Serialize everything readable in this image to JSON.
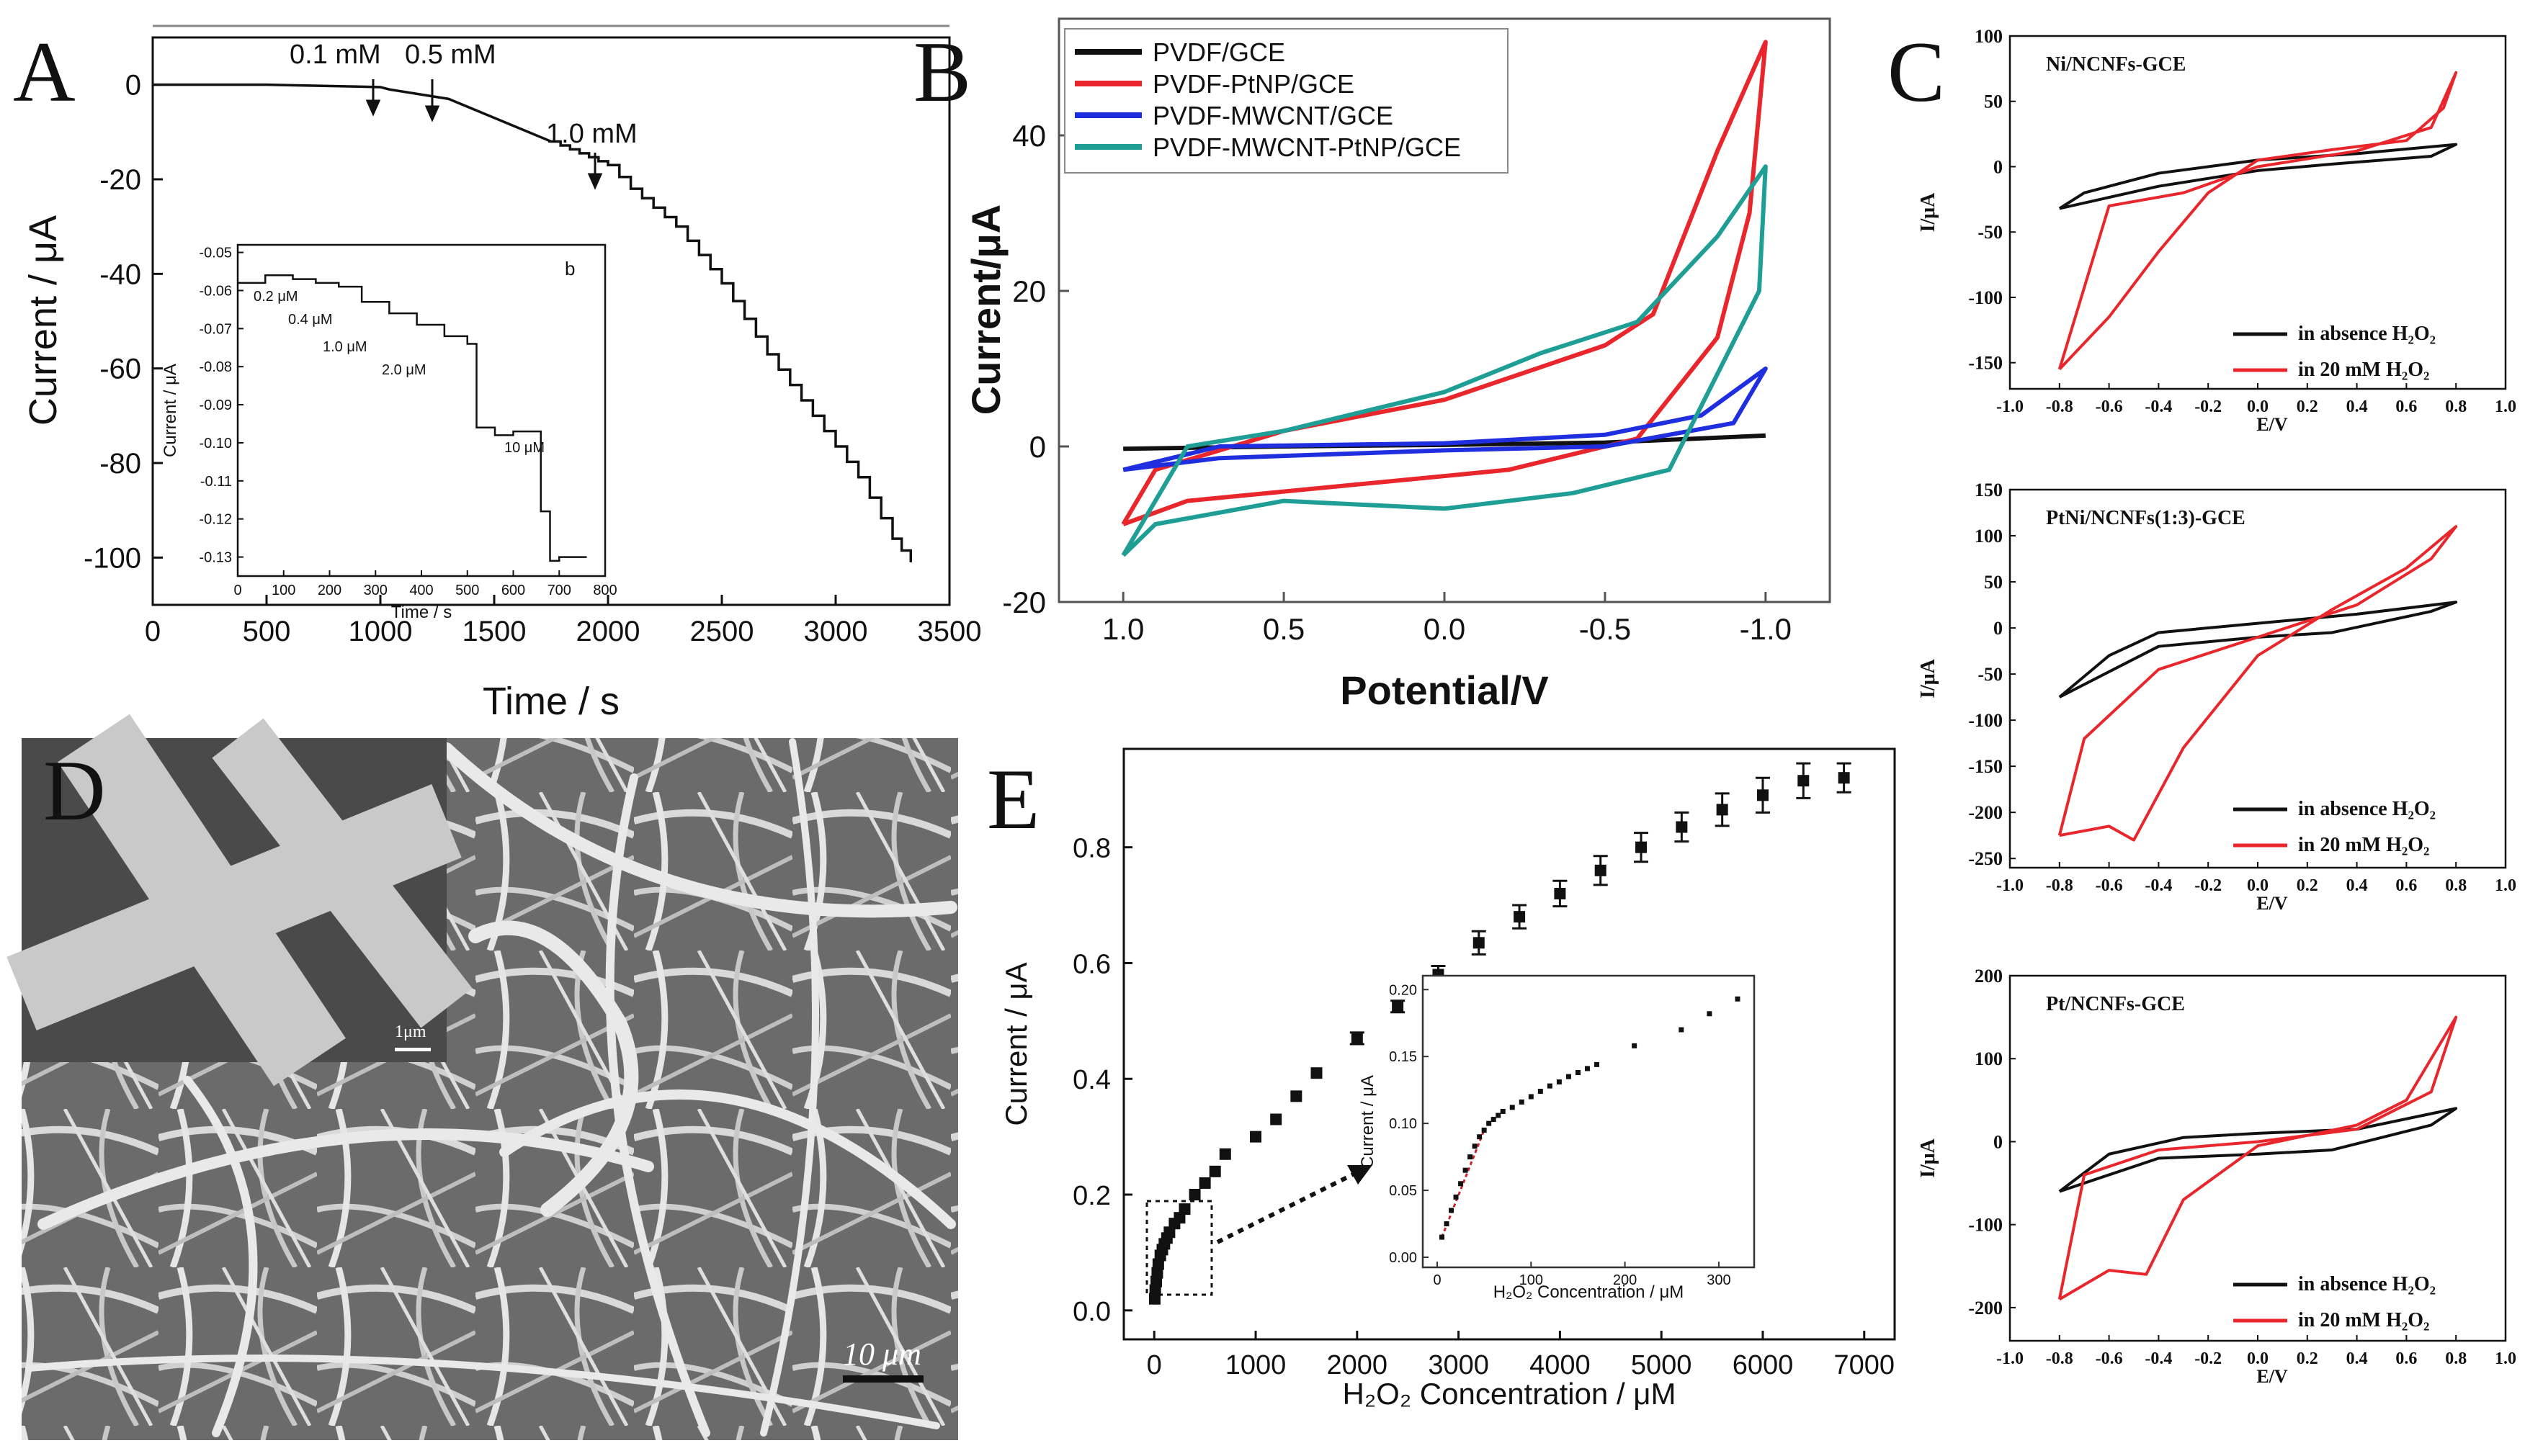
{
  "colors": {
    "black": "#111111",
    "red": "#e8262b",
    "blue": "#1f2fe0",
    "teal": "#1f9e96",
    "darkred": "#c8242a"
  },
  "panels": {
    "A": {
      "letter": "A",
      "main": {
        "xlabel": "Time / s",
        "ylabel": "Current / μA",
        "xticks": [
          "0",
          "500",
          "1000",
          "1500",
          "2000",
          "2500",
          "3000",
          "3500"
        ],
        "yticks": [
          "0",
          "-20",
          "-40",
          "-60",
          "-80",
          "-100"
        ],
        "annotations": [
          "0.1 mM",
          "0.5 mM",
          "1.0 mM"
        ]
      },
      "inset": {
        "panel_tag": "b",
        "xlabel": "Time / s",
        "ylabel": "Current / μA",
        "xticks": [
          "0",
          "100",
          "200",
          "300",
          "400",
          "500",
          "600",
          "700",
          "800"
        ],
        "yticks": [
          "-0.05",
          "-0.06",
          "-0.07",
          "-0.08",
          "-0.09",
          "-0.10",
          "-0.11",
          "-0.12",
          "-0.13"
        ],
        "annotations": [
          "0.2 μM",
          "0.4 μM",
          "1.0 μM",
          "2.0 μM",
          "10 μM"
        ]
      }
    },
    "B": {
      "letter": "B",
      "xlabel": "Potential/V",
      "ylabel": "Current/μA",
      "xticks": [
        "1.0",
        "0.5",
        "0.0",
        "-0.5",
        "-1.0"
      ],
      "yticks": [
        "40",
        "20",
        "0",
        "-20"
      ],
      "legend": [
        "PVDF/GCE",
        "PVDF-PtNP/GCE",
        "PVDF-MWCNT/GCE",
        "PVDF-MWCNT-PtNP/GCE"
      ]
    },
    "C": {
      "letter": "C",
      "xticks": [
        "-1.0",
        "-0.8",
        "-0.6",
        "-0.4",
        "-0.2",
        "0.0",
        "0.2",
        "0.4",
        "0.6",
        "0.8",
        "1.0"
      ],
      "xlabel": "E/V",
      "ylabel": "I/μA",
      "legend_black": "in absence H₂O₂",
      "legend_red": "in 20 mM H₂O₂",
      "subplots": [
        {
          "title": "Ni/NCNFs-GCE",
          "yticks": [
            "100",
            "50",
            "0",
            "-50",
            "-100",
            "-150"
          ]
        },
        {
          "title": "PtNi/NCNFs(1:3)-GCE",
          "yticks": [
            "150",
            "100",
            "50",
            "0",
            "-50",
            "-100",
            "-150",
            "-200",
            "-250"
          ]
        },
        {
          "title": "Pt/NCNFs-GCE",
          "yticks": [
            "200",
            "100",
            "0",
            "-100",
            "-200"
          ]
        }
      ]
    },
    "D": {
      "letter": "D",
      "inset_scale": "1μm",
      "scale": "10 μm"
    },
    "E": {
      "letter": "E",
      "xlabel": "H₂O₂ Concentration / μM",
      "ylabel": "Current / μA",
      "xticks": [
        "0",
        "1000",
        "2000",
        "3000",
        "4000",
        "5000",
        "6000",
        "7000"
      ],
      "yticks": [
        "0.0",
        "0.2",
        "0.4",
        "0.6",
        "0.8"
      ],
      "inset": {
        "xlabel": "H₂O₂ Concentration / μM",
        "ylabel": "Current / μA",
        "xticks": [
          "0",
          "100",
          "200",
          "300"
        ],
        "yticks": [
          "0.00",
          "0.05",
          "0.10",
          "0.15",
          "0.20"
        ]
      }
    }
  },
  "chart_data": [
    {
      "panel": "A",
      "type": "line",
      "title": "",
      "xlabel": "Time / s",
      "ylabel": "Current / μA",
      "xlim": [
        0,
        3500
      ],
      "ylim": [
        -110,
        10
      ],
      "x": [
        0,
        500,
        1000,
        1040,
        1300,
        1500,
        1750,
        2000,
        2100,
        2300,
        2500,
        2700,
        2900,
        3100,
        3250,
        3330
      ],
      "y": [
        0,
        0,
        -0.5,
        -1,
        -3,
        -7,
        -12,
        -17,
        -22,
        -30,
        -42,
        -57,
        -70,
        -83,
        -96,
        -101
      ]
    },
    {
      "panel": "A-inset",
      "type": "line",
      "xlabel": "Time / s",
      "ylabel": "Current / μA",
      "xlim": [
        0,
        800
      ],
      "ylim": [
        -0.135,
        -0.048
      ],
      "x": [
        0,
        60,
        120,
        170,
        220,
        270,
        330,
        390,
        450,
        500,
        520,
        560,
        600,
        660,
        680,
        700,
        760
      ],
      "y": [
        -0.058,
        -0.056,
        -0.057,
        -0.058,
        -0.059,
        -0.063,
        -0.066,
        -0.069,
        -0.072,
        -0.074,
        -0.096,
        -0.098,
        -0.097,
        -0.118,
        -0.131,
        -0.13,
        -0.13
      ]
    },
    {
      "panel": "B",
      "type": "line",
      "xlabel": "Potential/V",
      "ylabel": "Current/μA",
      "xlim": [
        1.2,
        -1.2
      ],
      "ylim": [
        -20,
        55
      ],
      "series": [
        {
          "name": "PVDF/GCE",
          "color": "#111111",
          "loop": [
            [
              1.0,
              -0.3
            ],
            [
              0.5,
              0.0
            ],
            [
              0.0,
              0.2
            ],
            [
              -0.5,
              0.5
            ],
            [
              -1.0,
              1.4
            ]
          ]
        },
        {
          "name": "PVDF-PtNP/GCE",
          "color": "#e8262b",
          "loop": [
            [
              1.0,
              -10
            ],
            [
              0.9,
              -3
            ],
            [
              0.5,
              2
            ],
            [
              0.0,
              6
            ],
            [
              -0.5,
              13
            ],
            [
              -0.65,
              17
            ],
            [
              -0.85,
              38
            ],
            [
              -1.0,
              52
            ],
            [
              -0.95,
              30
            ],
            [
              -0.85,
              14
            ],
            [
              -0.6,
              1
            ],
            [
              -0.2,
              -3
            ],
            [
              0.3,
              -5
            ],
            [
              0.8,
              -7
            ],
            [
              1.0,
              -10
            ]
          ]
        },
        {
          "name": "PVDF-MWCNT/GCE",
          "color": "#1f2fe0",
          "loop": [
            [
              1.0,
              -3
            ],
            [
              0.7,
              0
            ],
            [
              0.0,
              0.4
            ],
            [
              -0.5,
              1.5
            ],
            [
              -0.8,
              4
            ],
            [
              -1.0,
              10
            ],
            [
              -0.9,
              3
            ],
            [
              -0.5,
              0
            ],
            [
              0.0,
              -0.5
            ],
            [
              0.7,
              -1.5
            ],
            [
              1.0,
              -3
            ]
          ]
        },
        {
          "name": "PVDF-MWCNT-PtNP/GCE",
          "color": "#1f9e96",
          "loop": [
            [
              1.0,
              -14
            ],
            [
              0.8,
              0
            ],
            [
              0.5,
              2
            ],
            [
              0.0,
              7
            ],
            [
              -0.3,
              12
            ],
            [
              -0.6,
              16
            ],
            [
              -0.85,
              27
            ],
            [
              -1.0,
              36
            ],
            [
              -0.98,
              20
            ],
            [
              -0.7,
              -3
            ],
            [
              -0.4,
              -6
            ],
            [
              0.0,
              -8
            ],
            [
              0.5,
              -7
            ],
            [
              0.9,
              -10
            ],
            [
              1.0,
              -14
            ]
          ]
        }
      ]
    },
    {
      "panel": "C-1",
      "type": "line",
      "title": "Ni/NCNFs-GCE",
      "xlabel": "E/V",
      "ylabel": "I/μA",
      "xlim": [
        -1.0,
        1.0
      ],
      "ylim": [
        -170,
        100
      ],
      "series": [
        {
          "name": "in absence H₂O₂",
          "color": "#111111",
          "loop": [
            [
              -0.8,
              -32
            ],
            [
              -0.7,
              -20
            ],
            [
              -0.4,
              -5
            ],
            [
              0.0,
              5
            ],
            [
              0.4,
              10
            ],
            [
              0.8,
              17
            ],
            [
              0.7,
              8
            ],
            [
              0.3,
              2
            ],
            [
              0.0,
              -3
            ],
            [
              -0.4,
              -15
            ],
            [
              -0.8,
              -32
            ]
          ]
        },
        {
          "name": "in 20 mM H₂O₂",
          "color": "#e8262b",
          "loop": [
            [
              -0.8,
              -155
            ],
            [
              -0.6,
              -115
            ],
            [
              -0.4,
              -65
            ],
            [
              -0.2,
              -20
            ],
            [
              0.0,
              5
            ],
            [
              0.3,
              13
            ],
            [
              0.6,
              20
            ],
            [
              0.75,
              45
            ],
            [
              0.8,
              72
            ],
            [
              0.7,
              30
            ],
            [
              0.4,
              12
            ],
            [
              0.0,
              0
            ],
            [
              -0.3,
              -20
            ],
            [
              -0.6,
              -30
            ],
            [
              -0.8,
              -155
            ]
          ]
        }
      ]
    },
    {
      "panel": "C-2",
      "type": "line",
      "title": "PtNi/NCNFs(1:3)-GCE",
      "xlabel": "E/V",
      "ylabel": "I/μA",
      "xlim": [
        -1.0,
        1.0
      ],
      "ylim": [
        -260,
        150
      ],
      "series": [
        {
          "name": "in absence H₂O₂",
          "color": "#111111",
          "loop": [
            [
              -0.8,
              -75
            ],
            [
              -0.6,
              -30
            ],
            [
              -0.4,
              -5
            ],
            [
              0.0,
              5
            ],
            [
              0.4,
              15
            ],
            [
              0.8,
              28
            ],
            [
              0.7,
              18
            ],
            [
              0.3,
              -5
            ],
            [
              0.0,
              -10
            ],
            [
              -0.4,
              -20
            ],
            [
              -0.8,
              -75
            ]
          ]
        },
        {
          "name": "in 20 mM H₂O₂",
          "color": "#e8262b",
          "loop": [
            [
              -0.8,
              -225
            ],
            [
              -0.6,
              -215
            ],
            [
              -0.5,
              -230
            ],
            [
              -0.3,
              -130
            ],
            [
              0.0,
              -30
            ],
            [
              0.3,
              20
            ],
            [
              0.6,
              65
            ],
            [
              0.8,
              110
            ],
            [
              0.7,
              75
            ],
            [
              0.4,
              25
            ],
            [
              0.0,
              -10
            ],
            [
              -0.4,
              -45
            ],
            [
              -0.7,
              -120
            ],
            [
              -0.8,
              -225
            ]
          ]
        }
      ]
    },
    {
      "panel": "C-3",
      "type": "line",
      "title": "Pt/NCNFs-GCE",
      "xlabel": "E/V",
      "ylabel": "I/μA",
      "xlim": [
        -1.0,
        1.0
      ],
      "ylim": [
        -240,
        200
      ],
      "series": [
        {
          "name": "in absence H₂O₂",
          "color": "#111111",
          "loop": [
            [
              -0.8,
              -60
            ],
            [
              -0.6,
              -15
            ],
            [
              -0.3,
              5
            ],
            [
              0.0,
              10
            ],
            [
              0.4,
              15
            ],
            [
              0.8,
              40
            ],
            [
              0.7,
              20
            ],
            [
              0.3,
              -10
            ],
            [
              0.0,
              -15
            ],
            [
              -0.4,
              -20
            ],
            [
              -0.8,
              -60
            ]
          ]
        },
        {
          "name": "in 20 mM H₂O₂",
          "color": "#e8262b",
          "loop": [
            [
              -0.8,
              -190
            ],
            [
              -0.6,
              -155
            ],
            [
              -0.45,
              -160
            ],
            [
              -0.3,
              -70
            ],
            [
              0.0,
              -5
            ],
            [
              0.4,
              20
            ],
            [
              0.6,
              50
            ],
            [
              0.8,
              150
            ],
            [
              0.7,
              60
            ],
            [
              0.4,
              15
            ],
            [
              0.0,
              0
            ],
            [
              -0.4,
              -10
            ],
            [
              -0.7,
              -40
            ],
            [
              -0.8,
              -190
            ]
          ]
        }
      ]
    },
    {
      "panel": "E",
      "type": "scatter",
      "xlabel": "H₂O₂ Concentration / μM",
      "ylabel": "Current / μA",
      "xlim": [
        -300,
        7300
      ],
      "ylim": [
        -0.05,
        0.97
      ],
      "x": [
        5,
        10,
        20,
        30,
        40,
        60,
        80,
        100,
        125,
        150,
        200,
        250,
        300,
        400,
        500,
        600,
        700,
        1000,
        1200,
        1400,
        1600,
        2000,
        2400,
        2800,
        3200,
        3600,
        4000,
        4400,
        4800,
        5200,
        5600,
        6000,
        6400,
        6800
      ],
      "y": [
        0.02,
        0.035,
        0.05,
        0.065,
        0.08,
        0.095,
        0.105,
        0.115,
        0.125,
        0.135,
        0.15,
        0.16,
        0.175,
        0.2,
        0.22,
        0.24,
        0.27,
        0.3,
        0.33,
        0.37,
        0.41,
        0.47,
        0.525,
        0.58,
        0.635,
        0.68,
        0.72,
        0.76,
        0.8,
        0.835,
        0.865,
        0.89,
        0.915,
        0.92
      ],
      "error": [
        0,
        0,
        0,
        0,
        0,
        0,
        0,
        0,
        0,
        0,
        0,
        0,
        0,
        0,
        0,
        0,
        0,
        0,
        0,
        0,
        0,
        0.01,
        0.01,
        0.015,
        0.02,
        0.02,
        0.022,
        0.025,
        0.025,
        0.025,
        0.028,
        0.03,
        0.03,
        0.025
      ]
    },
    {
      "panel": "E-inset",
      "type": "scatter",
      "xlabel": "H₂O₂ Concentration / μM",
      "ylabel": "Current / μA",
      "xlim": [
        0,
        330
      ],
      "ylim": [
        0,
        0.205
      ],
      "x": [
        5,
        10,
        15,
        20,
        25,
        30,
        35,
        40,
        45,
        50,
        55,
        60,
        65,
        70,
        80,
        90,
        100,
        110,
        120,
        130,
        140,
        150,
        160,
        170,
        210,
        260,
        290,
        320
      ],
      "y": [
        0.015,
        0.025,
        0.035,
        0.045,
        0.055,
        0.065,
        0.075,
        0.083,
        0.09,
        0.095,
        0.1,
        0.103,
        0.106,
        0.109,
        0.112,
        0.116,
        0.12,
        0.124,
        0.128,
        0.131,
        0.135,
        0.138,
        0.141,
        0.144,
        0.158,
        0.17,
        0.182,
        0.193
      ]
    }
  ]
}
